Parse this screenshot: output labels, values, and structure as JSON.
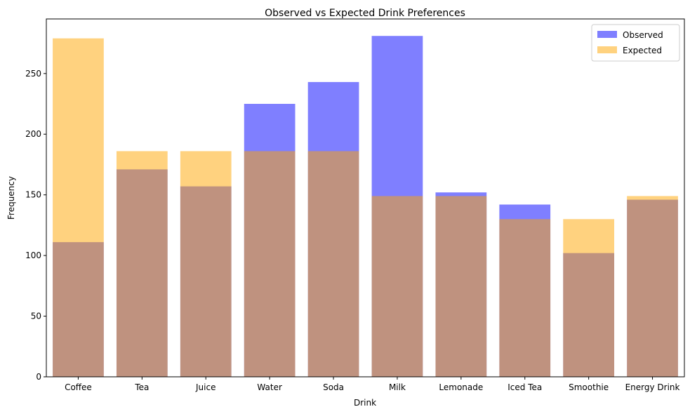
{
  "chart_data": {
    "type": "bar",
    "title": "Observed vs Expected Drink Preferences",
    "xlabel": "Drink",
    "ylabel": "Frequency",
    "categories": [
      "Coffee",
      "Tea",
      "Juice",
      "Water",
      "Soda",
      "Milk",
      "Lemonade",
      "Iced Tea",
      "Smoothie",
      "Energy Drink"
    ],
    "series": [
      {
        "name": "Observed",
        "color": "#0000ff",
        "opacity": 0.5,
        "values": [
          111,
          171,
          157,
          225,
          243,
          281,
          152,
          142,
          102,
          146
        ]
      },
      {
        "name": "Expected",
        "color": "#ffa500",
        "opacity": 0.5,
        "values": [
          279,
          186,
          186,
          186,
          186,
          149,
          149,
          130,
          130,
          149
        ]
      }
    ],
    "ylim": [
      0,
      295
    ],
    "yticks": [
      0,
      50,
      100,
      150,
      200,
      250
    ],
    "legend_position": "top-right",
    "grid": false
  }
}
